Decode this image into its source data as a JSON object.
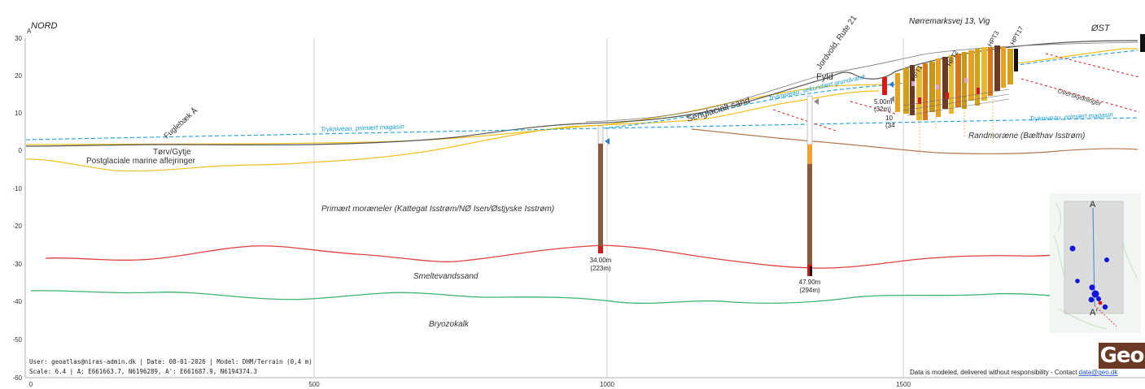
{
  "header": {
    "west": "NORD",
    "east": "ØST",
    "address": "Nørremarksvej 13, Vig",
    "ylabel": "A"
  },
  "y_ticks": [
    "30",
    "20",
    "10",
    "0",
    "-10",
    "-20",
    "-30",
    "-40",
    "-50",
    "-60"
  ],
  "x_ticks": [
    "0",
    "500",
    "1000",
    "1500"
  ],
  "units": {
    "torv": "Tørv/Gytje",
    "postglacial": "Postglaciale marine aflejringer",
    "moraene": "Primært moræneler (Kattegat Isstrøm/NØ Isen/Østjyske Isstrøm)",
    "smeltevand": "Smeltevandssand",
    "bryozo": "Bryozokalk",
    "senglacial": "Senglacialt sand",
    "fyld": "Fyld",
    "randmoraene": "Randmoræne (Bælthav Isstrøm)"
  },
  "features": {
    "fuglebaek": "Fuglebæk Å",
    "jordvold": "Jordvold, Rute 21",
    "overskydninger": "Overskydninger",
    "tryk_primaer_west": "Trykniveau, primært magasin",
    "tryk_primaer_east": "Trykniveau, primært magasin",
    "tryk_sekundaer": "Trykniveau, sekundært grundvand"
  },
  "hpt": [
    "HPT1",
    "HPT2",
    "HPT3",
    "HPT17"
  ],
  "boreholes": [
    {
      "depth": "34.00m",
      "id": "(223m)"
    },
    {
      "depth": "47.90m",
      "id": "(294m)"
    }
  ],
  "cluster_labels": {
    "depth1": "5.00m",
    "id1": "(32m)",
    "depth2": "10",
    "id2": "(34"
  },
  "inset": {
    "a": "A",
    "a2": "A'"
  },
  "footer": {
    "line1": "User: geoatlas@niras-admin.dk | Date: 08-01-2026 | Model: DHM/Terrain (0,4 m)",
    "line2": "Scale: 6.4 | A: E661663.7, N6196289, A': E661687.9, N6194374.3",
    "disclaimer": "Data is modeled, delivered without responsibility - Contact ",
    "email": "data@geo.dk"
  },
  "logo": "Geo",
  "colors": {
    "terrain": "#555555",
    "red_layer": "#e04040",
    "green_layer": "#3cb371",
    "yellow_layer": "#f0c020",
    "brown_layer": "#b07850",
    "trykniveau": "#1aa0d8"
  }
}
